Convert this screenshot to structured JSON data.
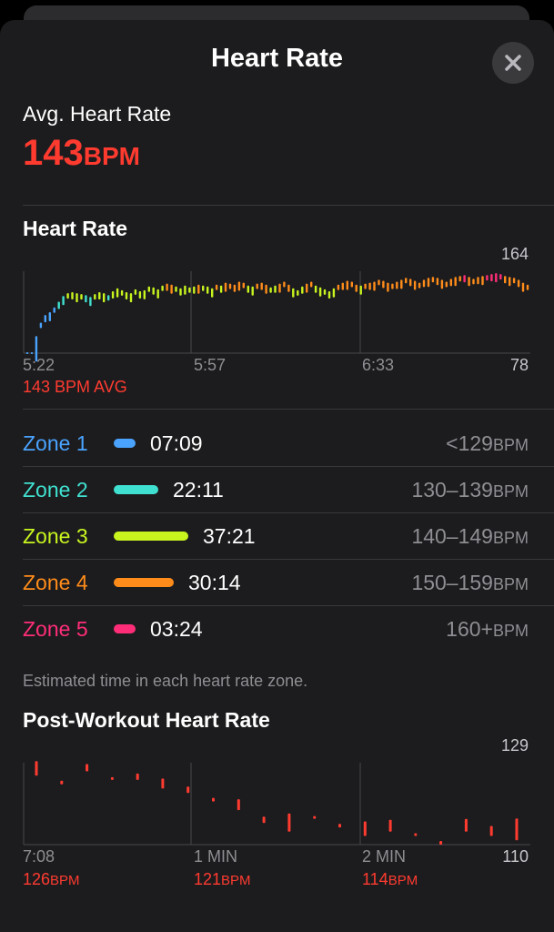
{
  "sheet": {
    "title": "Heart Rate"
  },
  "avg": {
    "label": "Avg. Heart Rate",
    "value": "143",
    "unit": "BPM"
  },
  "hr_section": {
    "title": "Heart Rate",
    "y_max": "164",
    "y_min": "78",
    "x_labels": [
      "5:22",
      "5:57",
      "6:33"
    ],
    "avg_text": "143 BPM AVG"
  },
  "zones": [
    {
      "name": "Zone 1",
      "time": "07:09",
      "range": "<129",
      "unit": "BPM",
      "color": "#4aa3ff",
      "fraction": 0.071
    },
    {
      "name": "Zone 2",
      "time": "22:11",
      "range": "130–139",
      "unit": "BPM",
      "color": "#40e0d0",
      "fraction": 0.22
    },
    {
      "name": "Zone 3",
      "time": "37:21",
      "range": "140–149",
      "unit": "BPM",
      "color": "#c8f51e",
      "fraction": 0.37
    },
    {
      "name": "Zone 4",
      "time": "30:14",
      "range": "150–159",
      "unit": "BPM",
      "color": "#ff8c1a",
      "fraction": 0.3
    },
    {
      "name": "Zone 5",
      "time": "03:24",
      "range": "160+",
      "unit": "BPM",
      "color": "#ff2d78",
      "fraction": 0.034
    }
  ],
  "zones_note": "Estimated time in each heart rate zone.",
  "post": {
    "title": "Post-Workout Heart Rate",
    "y_max": "129",
    "y_min": "110",
    "x_labels": [
      "7:08",
      "1 MIN",
      "2 MIN"
    ],
    "values": [
      {
        "value": "126",
        "unit": "BPM"
      },
      {
        "value": "121",
        "unit": "BPM"
      },
      {
        "value": "114",
        "unit": "BPM"
      }
    ]
  },
  "chart_data": [
    {
      "type": "bar",
      "title": "Heart Rate",
      "x_tick_labels": [
        "5:22",
        "5:57",
        "6:33"
      ],
      "ylim": [
        78,
        164
      ],
      "values": [
        79,
        79,
        96,
        110,
        118,
        121,
        126,
        132,
        138,
        141,
        142,
        141,
        140,
        139,
        137,
        140,
        142,
        141,
        139,
        143,
        146,
        144,
        142,
        141,
        145,
        143,
        144,
        148,
        147,
        145,
        149,
        151,
        150,
        148,
        146,
        149,
        147,
        148,
        150,
        149,
        148,
        146,
        150,
        149,
        152,
        151,
        150,
        153,
        152,
        149,
        148,
        151,
        152,
        150,
        147,
        149,
        151,
        153,
        150,
        146,
        144,
        148,
        151,
        153,
        149,
        147,
        145,
        143,
        146,
        150,
        152,
        154,
        153,
        150,
        149,
        151,
        152,
        153,
        155,
        154,
        152,
        151,
        153,
        155,
        157,
        156,
        154,
        152,
        155,
        157,
        158,
        157,
        155,
        153,
        156,
        158,
        159,
        160,
        158,
        156,
        158,
        159,
        160,
        161,
        162,
        161,
        159,
        158,
        157,
        155,
        152,
        150
      ]
    },
    {
      "type": "bar",
      "title": "Post-Workout Heart Rate",
      "x_tick_labels": [
        "7:08",
        "1 MIN",
        "2 MIN"
      ],
      "ylim": [
        110,
        129
      ],
      "values": [
        126,
        124,
        127,
        125,
        125,
        123,
        122,
        120,
        118,
        115,
        113,
        116,
        114,
        112,
        113,
        112,
        110,
        113,
        112,
        111
      ]
    }
  ]
}
